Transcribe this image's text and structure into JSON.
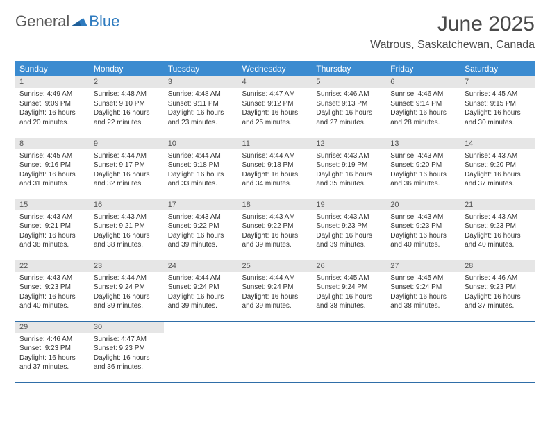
{
  "logo": {
    "part1": "General",
    "part2": "Blue"
  },
  "colors": {
    "header_bg": "#3b8bd0",
    "header_text": "#ffffff",
    "daynum_bg": "#e6e6e6",
    "row_border": "#2f6ea8",
    "logo_accent": "#2f7bbf",
    "logo_gray": "#5a5a5a",
    "body_text": "#333333"
  },
  "title": "June 2025",
  "location": "Watrous, Saskatchewan, Canada",
  "weekdays": [
    "Sunday",
    "Monday",
    "Tuesday",
    "Wednesday",
    "Thursday",
    "Friday",
    "Saturday"
  ],
  "days": [
    {
      "n": "1",
      "sunrise": "Sunrise: 4:49 AM",
      "sunset": "Sunset: 9:09 PM",
      "day": "Daylight: 16 hours and 20 minutes."
    },
    {
      "n": "2",
      "sunrise": "Sunrise: 4:48 AM",
      "sunset": "Sunset: 9:10 PM",
      "day": "Daylight: 16 hours and 22 minutes."
    },
    {
      "n": "3",
      "sunrise": "Sunrise: 4:48 AM",
      "sunset": "Sunset: 9:11 PM",
      "day": "Daylight: 16 hours and 23 minutes."
    },
    {
      "n": "4",
      "sunrise": "Sunrise: 4:47 AM",
      "sunset": "Sunset: 9:12 PM",
      "day": "Daylight: 16 hours and 25 minutes."
    },
    {
      "n": "5",
      "sunrise": "Sunrise: 4:46 AM",
      "sunset": "Sunset: 9:13 PM",
      "day": "Daylight: 16 hours and 27 minutes."
    },
    {
      "n": "6",
      "sunrise": "Sunrise: 4:46 AM",
      "sunset": "Sunset: 9:14 PM",
      "day": "Daylight: 16 hours and 28 minutes."
    },
    {
      "n": "7",
      "sunrise": "Sunrise: 4:45 AM",
      "sunset": "Sunset: 9:15 PM",
      "day": "Daylight: 16 hours and 30 minutes."
    },
    {
      "n": "8",
      "sunrise": "Sunrise: 4:45 AM",
      "sunset": "Sunset: 9:16 PM",
      "day": "Daylight: 16 hours and 31 minutes."
    },
    {
      "n": "9",
      "sunrise": "Sunrise: 4:44 AM",
      "sunset": "Sunset: 9:17 PM",
      "day": "Daylight: 16 hours and 32 minutes."
    },
    {
      "n": "10",
      "sunrise": "Sunrise: 4:44 AM",
      "sunset": "Sunset: 9:18 PM",
      "day": "Daylight: 16 hours and 33 minutes."
    },
    {
      "n": "11",
      "sunrise": "Sunrise: 4:44 AM",
      "sunset": "Sunset: 9:18 PM",
      "day": "Daylight: 16 hours and 34 minutes."
    },
    {
      "n": "12",
      "sunrise": "Sunrise: 4:43 AM",
      "sunset": "Sunset: 9:19 PM",
      "day": "Daylight: 16 hours and 35 minutes."
    },
    {
      "n": "13",
      "sunrise": "Sunrise: 4:43 AM",
      "sunset": "Sunset: 9:20 PM",
      "day": "Daylight: 16 hours and 36 minutes."
    },
    {
      "n": "14",
      "sunrise": "Sunrise: 4:43 AM",
      "sunset": "Sunset: 9:20 PM",
      "day": "Daylight: 16 hours and 37 minutes."
    },
    {
      "n": "15",
      "sunrise": "Sunrise: 4:43 AM",
      "sunset": "Sunset: 9:21 PM",
      "day": "Daylight: 16 hours and 38 minutes."
    },
    {
      "n": "16",
      "sunrise": "Sunrise: 4:43 AM",
      "sunset": "Sunset: 9:21 PM",
      "day": "Daylight: 16 hours and 38 minutes."
    },
    {
      "n": "17",
      "sunrise": "Sunrise: 4:43 AM",
      "sunset": "Sunset: 9:22 PM",
      "day": "Daylight: 16 hours and 39 minutes."
    },
    {
      "n": "18",
      "sunrise": "Sunrise: 4:43 AM",
      "sunset": "Sunset: 9:22 PM",
      "day": "Daylight: 16 hours and 39 minutes."
    },
    {
      "n": "19",
      "sunrise": "Sunrise: 4:43 AM",
      "sunset": "Sunset: 9:23 PM",
      "day": "Daylight: 16 hours and 39 minutes."
    },
    {
      "n": "20",
      "sunrise": "Sunrise: 4:43 AM",
      "sunset": "Sunset: 9:23 PM",
      "day": "Daylight: 16 hours and 40 minutes."
    },
    {
      "n": "21",
      "sunrise": "Sunrise: 4:43 AM",
      "sunset": "Sunset: 9:23 PM",
      "day": "Daylight: 16 hours and 40 minutes."
    },
    {
      "n": "22",
      "sunrise": "Sunrise: 4:43 AM",
      "sunset": "Sunset: 9:23 PM",
      "day": "Daylight: 16 hours and 40 minutes."
    },
    {
      "n": "23",
      "sunrise": "Sunrise: 4:44 AM",
      "sunset": "Sunset: 9:24 PM",
      "day": "Daylight: 16 hours and 39 minutes."
    },
    {
      "n": "24",
      "sunrise": "Sunrise: 4:44 AM",
      "sunset": "Sunset: 9:24 PM",
      "day": "Daylight: 16 hours and 39 minutes."
    },
    {
      "n": "25",
      "sunrise": "Sunrise: 4:44 AM",
      "sunset": "Sunset: 9:24 PM",
      "day": "Daylight: 16 hours and 39 minutes."
    },
    {
      "n": "26",
      "sunrise": "Sunrise: 4:45 AM",
      "sunset": "Sunset: 9:24 PM",
      "day": "Daylight: 16 hours and 38 minutes."
    },
    {
      "n": "27",
      "sunrise": "Sunrise: 4:45 AM",
      "sunset": "Sunset: 9:24 PM",
      "day": "Daylight: 16 hours and 38 minutes."
    },
    {
      "n": "28",
      "sunrise": "Sunrise: 4:46 AM",
      "sunset": "Sunset: 9:23 PM",
      "day": "Daylight: 16 hours and 37 minutes."
    },
    {
      "n": "29",
      "sunrise": "Sunrise: 4:46 AM",
      "sunset": "Sunset: 9:23 PM",
      "day": "Daylight: 16 hours and 37 minutes."
    },
    {
      "n": "30",
      "sunrise": "Sunrise: 4:47 AM",
      "sunset": "Sunset: 9:23 PM",
      "day": "Daylight: 16 hours and 36 minutes."
    }
  ]
}
